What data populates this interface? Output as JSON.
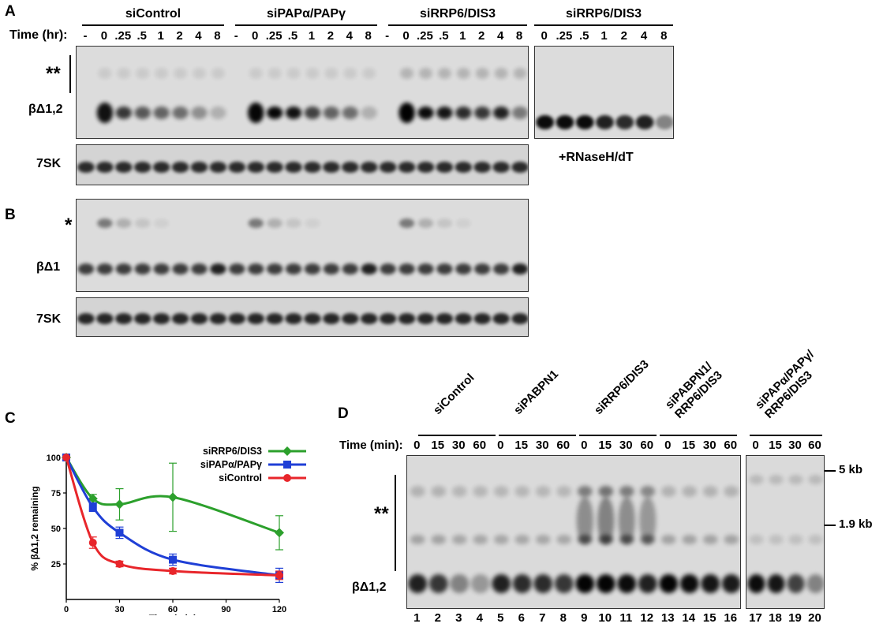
{
  "panels": {
    "a": {
      "letter": "A",
      "time_label": "Time (hr):",
      "conditions": [
        "siControl",
        "siPAPα/PAPγ",
        "siRRP6/DIS3"
      ],
      "extra_condition": "siRRP6/DIS3",
      "timepoints": [
        "-",
        "0",
        ".25",
        ".5",
        "1",
        "2",
        "4",
        "8"
      ],
      "extra_timepoints": [
        "0",
        ".25",
        ".5",
        "1",
        "2",
        "4",
        "8"
      ],
      "label_stars": "**",
      "label_band": "βΔ1,2",
      "label_7sk": "7SK",
      "treatment_label": "+RNaseH/dT"
    },
    "b": {
      "letter": "B",
      "label_star": "*",
      "label_band": "βΔ1",
      "label_7sk": "7SK"
    },
    "c": {
      "letter": "C"
    },
    "d": {
      "letter": "D",
      "time_label": "Time (min):",
      "conditions": [
        "siControl",
        "siPABPN1",
        "siRRP6/DIS3",
        "siPABPN1/\nRRP6/DIS3",
        "siPAPα/PAPγ/\nRRP6/DIS3"
      ],
      "timepoints": [
        "0",
        "15",
        "30",
        "60"
      ],
      "lane_numbers": [
        "1",
        "2",
        "3",
        "4",
        "5",
        "6",
        "7",
        "8",
        "9",
        "10",
        "11",
        "12",
        "13",
        "14",
        "15",
        "16",
        "17",
        "18",
        "19",
        "20"
      ],
      "label_stars": "**",
      "label_band": "βΔ1,2",
      "size_5kb": "5 kb",
      "size_19kb": "1.9 kb"
    }
  },
  "chart_data": {
    "type": "line",
    "title": "",
    "xlabel": "Time (min)",
    "ylabel": "% βΔ1,2 remaining",
    "xlim": [
      0,
      120
    ],
    "ylim": [
      0,
      100
    ],
    "xticks": [
      0,
      30,
      60,
      90,
      120
    ],
    "yticks": [
      25,
      50,
      75,
      100
    ],
    "legend_position": "top-right",
    "series": [
      {
        "name": "siRRP6/DIS3",
        "color": "#2ca02c",
        "marker": "diamond",
        "x": [
          0,
          15,
          30,
          60,
          120
        ],
        "y": [
          100,
          71,
          67,
          72,
          47
        ],
        "err": [
          0,
          3,
          11,
          24,
          12
        ]
      },
      {
        "name": "siPAPα/PAPγ",
        "color": "#1f3fd6",
        "marker": "square",
        "x": [
          0,
          15,
          30,
          60,
          120
        ],
        "y": [
          100,
          65,
          47,
          28,
          17
        ],
        "err": [
          0,
          3,
          4,
          4,
          5
        ]
      },
      {
        "name": "siControl",
        "color": "#e8262b",
        "marker": "circle",
        "x": [
          0,
          15,
          30,
          60,
          120
        ],
        "y": [
          100,
          40,
          25,
          20,
          17
        ],
        "err": [
          0,
          4,
          2,
          2,
          3
        ]
      }
    ]
  }
}
